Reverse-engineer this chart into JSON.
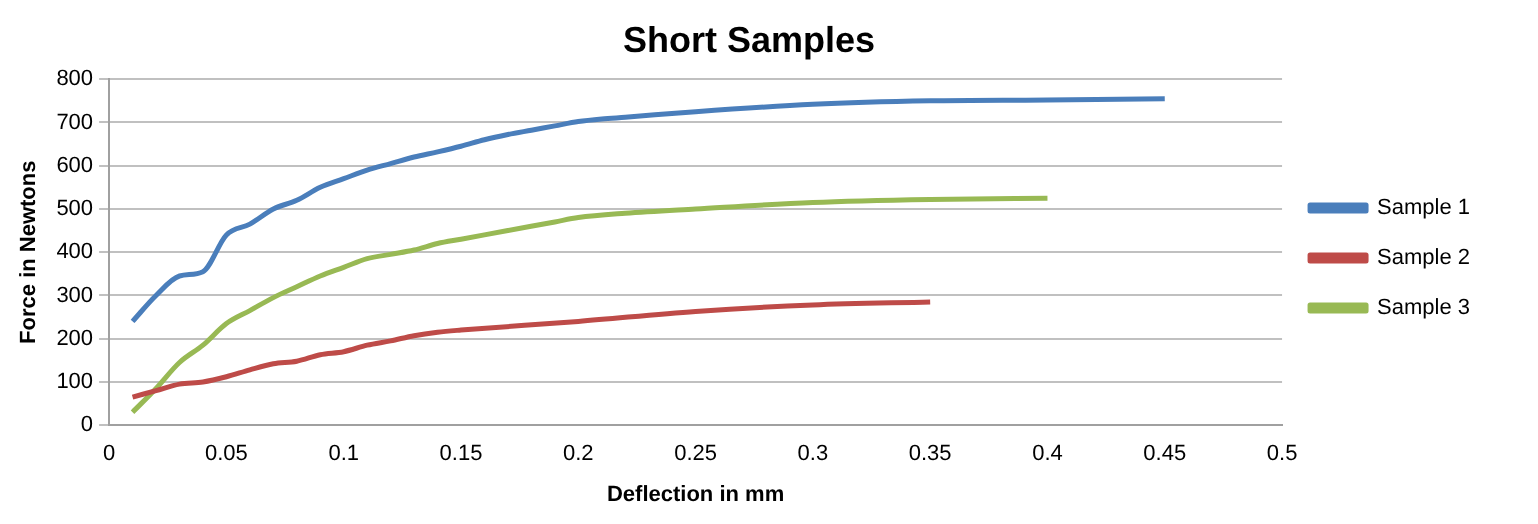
{
  "chart_data": {
    "type": "line",
    "title": "Short Samples",
    "xlabel": "Deflection in mm",
    "ylabel": "Force in Newtons",
    "xlim": [
      0,
      0.5
    ],
    "xticks": [
      0,
      0.05,
      0.1,
      0.15,
      0.2,
      0.25,
      0.3,
      0.35,
      0.4,
      0.45,
      0.5
    ],
    "ylim": [
      0,
      800
    ],
    "yticks": [
      0,
      100,
      200,
      300,
      400,
      500,
      600,
      700,
      800
    ],
    "grid": "y",
    "legend": "right",
    "marker": "none",
    "line_style": "solid",
    "series": [
      {
        "name": "Sample 1",
        "color": "#4a7ebb",
        "x": [
          0.01,
          0.02,
          0.03,
          0.04,
          0.05,
          0.06,
          0.07,
          0.08,
          0.09,
          0.1,
          0.11,
          0.12,
          0.13,
          0.14,
          0.15,
          0.16,
          0.17,
          0.18,
          0.19,
          0.2,
          0.21,
          0.22,
          0.25,
          0.3,
          0.35,
          0.4,
          0.45
        ],
        "values": [
          240,
          300,
          345,
          355,
          440,
          465,
          500,
          520,
          550,
          570,
          590,
          605,
          620,
          632,
          645,
          660,
          672,
          682,
          692,
          702,
          708,
          712,
          725,
          742,
          750,
          752,
          755
        ]
      },
      {
        "name": "Sample 2",
        "color": "#be4b48",
        "x": [
          0.01,
          0.02,
          0.03,
          0.04,
          0.05,
          0.06,
          0.07,
          0.08,
          0.09,
          0.1,
          0.11,
          0.12,
          0.13,
          0.14,
          0.15,
          0.2,
          0.25,
          0.3,
          0.35
        ],
        "values": [
          65,
          80,
          95,
          100,
          112,
          128,
          142,
          148,
          163,
          170,
          185,
          195,
          207,
          215,
          220,
          240,
          263,
          278,
          285
        ]
      },
      {
        "name": "Sample 3",
        "color": "#98b954",
        "x": [
          0.01,
          0.02,
          0.03,
          0.04,
          0.05,
          0.06,
          0.07,
          0.08,
          0.09,
          0.1,
          0.11,
          0.12,
          0.13,
          0.14,
          0.15,
          0.17,
          0.19,
          0.2,
          0.22,
          0.25,
          0.3,
          0.35,
          0.4
        ],
        "values": [
          30,
          85,
          145,
          185,
          235,
          265,
          295,
          320,
          345,
          365,
          385,
          395,
          405,
          420,
          430,
          450,
          470,
          480,
          490,
          500,
          515,
          522,
          525
        ]
      }
    ]
  }
}
